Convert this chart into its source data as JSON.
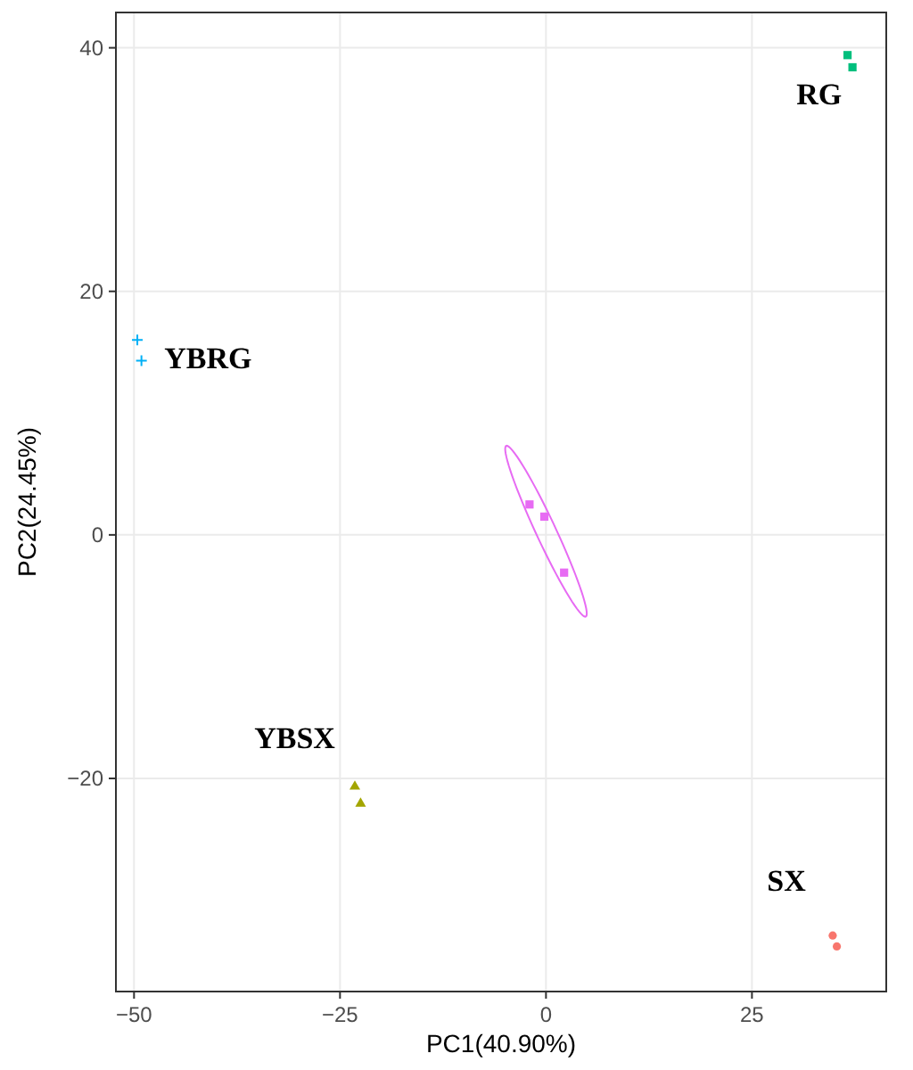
{
  "chart_data": {
    "type": "scatter",
    "xlabel": "PC1(40.90%)",
    "ylabel": "PC2(24.45%)",
    "xlim": [
      -52.2,
      41.3
    ],
    "ylim": [
      -37.5,
      42.9
    ],
    "xticks": [
      -50,
      -25,
      0,
      25
    ],
    "yticks": [
      -20,
      0,
      20,
      40
    ],
    "grid": true,
    "legend": false,
    "series": [
      {
        "name": "SX",
        "color": "#f8766d",
        "marker": "circle",
        "x": [
          34.8,
          35.3
        ],
        "values": [
          -32.9,
          -33.8
        ]
      },
      {
        "name": "YBSX",
        "color": "#a3a500",
        "marker": "triangle",
        "x": [
          -23.2,
          -22.5
        ],
        "values": [
          -20.6,
          -22.0
        ]
      },
      {
        "name": "RG",
        "color": "#00bf7d",
        "marker": "square",
        "x": [
          36.6,
          37.2
        ],
        "values": [
          39.4,
          38.4
        ]
      },
      {
        "name": "YBRG",
        "color": "#00b0f6",
        "marker": "cross",
        "x": [
          -49.6,
          -49.1
        ],
        "values": [
          16.0,
          14.3
        ]
      },
      {
        "color": "#e76bf3",
        "marker": "square",
        "x": [
          -2.0,
          -0.2,
          2.2
        ],
        "values": [
          2.5,
          1.5,
          -3.1
        ]
      }
    ]
  }
}
